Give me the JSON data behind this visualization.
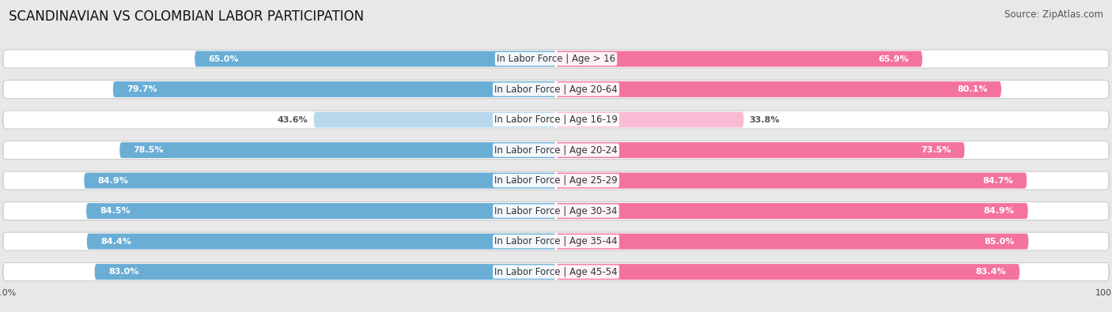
{
  "title": "SCANDINAVIAN VS COLOMBIAN LABOR PARTICIPATION",
  "source": "Source: ZipAtlas.com",
  "categories": [
    "In Labor Force | Age > 16",
    "In Labor Force | Age 20-64",
    "In Labor Force | Age 16-19",
    "In Labor Force | Age 20-24",
    "In Labor Force | Age 25-29",
    "In Labor Force | Age 30-34",
    "In Labor Force | Age 35-44",
    "In Labor Force | Age 45-54"
  ],
  "scandinavian": [
    65.0,
    79.7,
    43.6,
    78.5,
    84.9,
    84.5,
    84.4,
    83.0
  ],
  "colombian": [
    65.9,
    80.1,
    33.8,
    73.5,
    84.7,
    84.9,
    85.0,
    83.4
  ],
  "scand_color": "#6aaed6",
  "scand_color_light": "#b8d8ed",
  "colom_color": "#f472a0",
  "colom_color_light": "#f9bbd4",
  "bg_color": "#e8e8e8",
  "row_bg": "#ffffff",
  "max_val": 100.0,
  "title_fontsize": 12,
  "label_fontsize": 8.5,
  "value_fontsize": 8.0,
  "legend_fontsize": 9,
  "source_fontsize": 8.5,
  "threshold": 50.0
}
